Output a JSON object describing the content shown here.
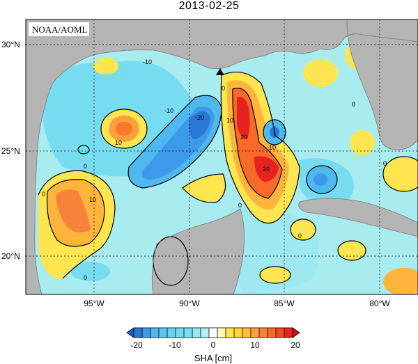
{
  "title": "2013-02-25",
  "source_label": "NOAA/AOML",
  "lat_labels": [
    "30°N",
    "25°N",
    "20°N"
  ],
  "lon_labels": [
    "95°W",
    "90°W",
    "85°W",
    "80°W"
  ],
  "contour_labels": [
    "-10",
    "10",
    "0",
    "-10",
    "-20",
    "10",
    "20",
    "0",
    "-10",
    "20",
    "0",
    "10",
    "0",
    "0",
    "0",
    "0",
    "0"
  ],
  "colorbar": {
    "ticks": [
      "-20",
      "-10",
      "0",
      "10",
      "20"
    ],
    "label": "SHA [cm]"
  },
  "colors": {
    "land": "#b4b4b4",
    "ocean_near_zero": "#b4f0f0",
    "strong_positive": "#e6231e",
    "strong_negative": "#2a78d6"
  }
}
